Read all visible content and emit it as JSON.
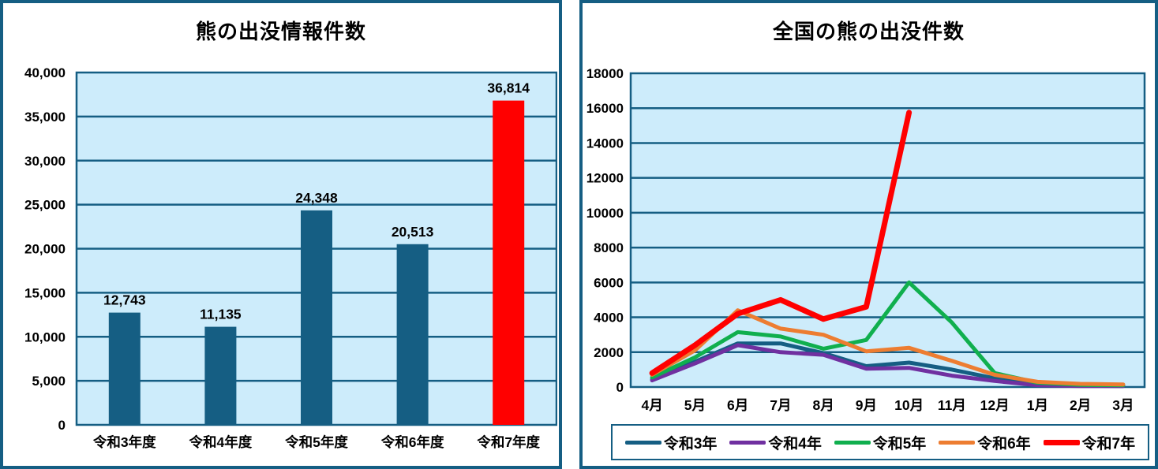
{
  "chart_data": [
    {
      "type": "bar",
      "title": "熊の出没情報件数",
      "categories": [
        "令和3年度",
        "令和4年度",
        "令和5年度",
        "令和6年度",
        "令和7年度"
      ],
      "values": [
        12743,
        11135,
        24348,
        20513,
        36814
      ],
      "value_labels": [
        "12,743",
        "11,135",
        "24,348",
        "20,513",
        "36,814"
      ],
      "bar_colors": [
        "#155E83",
        "#155E83",
        "#155E83",
        "#155E83",
        "#FF0000"
      ],
      "ylim": [
        0,
        40000
      ],
      "ytick_step": 5000,
      "ytick_labels": [
        "0",
        "5,000",
        "10,000",
        "15,000",
        "20,000",
        "25,000",
        "30,000",
        "35,000",
        "40,000"
      ],
      "grid": true,
      "legend": "none",
      "plot_bg": "#CDECFB",
      "axis_color": "#155E83"
    },
    {
      "type": "line",
      "title": "全国の熊の出没件数",
      "categories": [
        "4月",
        "5月",
        "6月",
        "7月",
        "8月",
        "9月",
        "10月",
        "11月",
        "12月",
        "1月",
        "2月",
        "3月"
      ],
      "series": [
        {
          "name": "令和3年",
          "color": "#155E83",
          "stroke_width": 5,
          "values": [
            450,
            1450,
            2500,
            2500,
            1950,
            1200,
            1400,
            1000,
            500,
            150,
            80,
            60
          ]
        },
        {
          "name": "令和4年",
          "color": "#7030A0",
          "stroke_width": 5,
          "values": [
            380,
            1350,
            2400,
            2000,
            1850,
            1050,
            1100,
            650,
            350,
            100,
            60,
            60
          ]
        },
        {
          "name": "令和5年",
          "color": "#10AF4E",
          "stroke_width": 5,
          "values": [
            550,
            1700,
            3150,
            2900,
            2200,
            2700,
            6000,
            3700,
            800,
            250,
            120,
            100
          ]
        },
        {
          "name": "令和6年",
          "color": "#ED7D31",
          "stroke_width": 5,
          "values": [
            700,
            2100,
            4400,
            3350,
            3000,
            2050,
            2250,
            1500,
            700,
            300,
            180,
            150
          ]
        },
        {
          "name": "令和7年",
          "color": "#FF0000",
          "stroke_width": 7,
          "values": [
            800,
            2400,
            4200,
            5000,
            3900,
            4600,
            15750,
            null,
            null,
            null,
            null,
            null
          ]
        }
      ],
      "ylim": [
        0,
        18000
      ],
      "ytick_step": 2000,
      "ytick_labels": [
        "0",
        "2000",
        "4000",
        "6000",
        "8000",
        "10000",
        "12000",
        "14000",
        "16000",
        "18000"
      ],
      "grid": true,
      "legend_position": "bottom",
      "plot_bg": "#CDECFB",
      "axis_color": "#155E83"
    }
  ]
}
